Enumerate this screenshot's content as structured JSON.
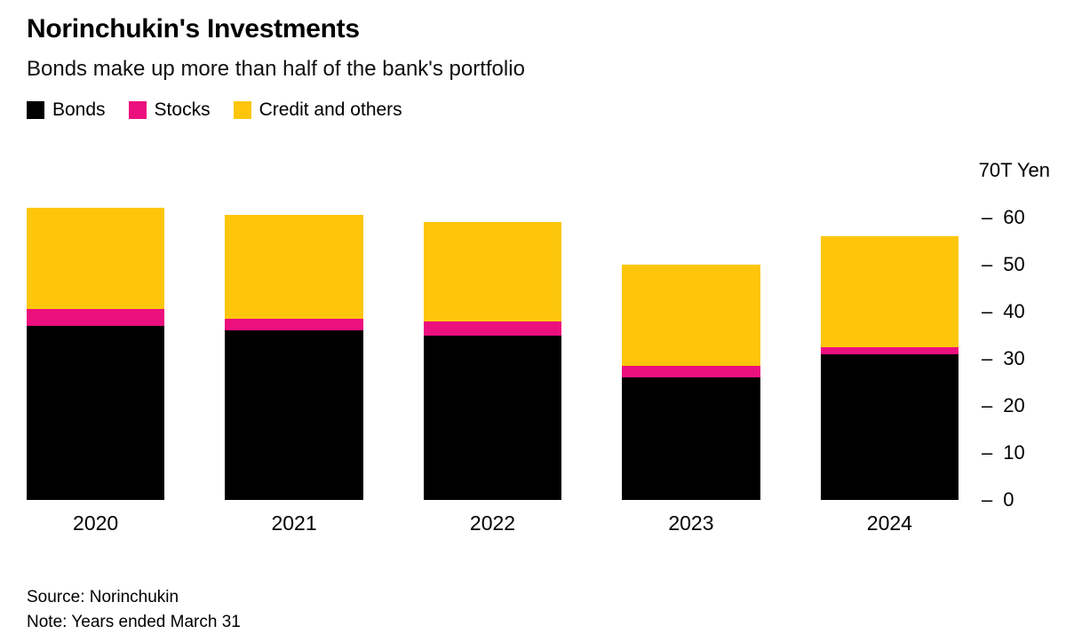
{
  "header": {
    "title": "Norinchukin's Investments",
    "subtitle": "Bonds make up more than half of the bank's portfolio"
  },
  "legend": [
    {
      "label": "Bonds",
      "color": "#000000"
    },
    {
      "label": "Stocks",
      "color": "#ec0f7e"
    },
    {
      "label": "Credit and others",
      "color": "#fdc60b"
    }
  ],
  "chart_data": {
    "type": "bar",
    "stacked": true,
    "title": "Norinchukin's Investments",
    "subtitle": "Bonds make up more than half of the bank's portfolio",
    "categories": [
      "2020",
      "2021",
      "2022",
      "2023",
      "2024"
    ],
    "series": [
      {
        "name": "Bonds",
        "color": "#000000",
        "values": [
          37,
          36,
          35,
          26,
          31
        ]
      },
      {
        "name": "Stocks",
        "color": "#ec0f7e",
        "values": [
          3.5,
          2.5,
          3,
          2.5,
          1.5
        ]
      },
      {
        "name": "Credit and others",
        "color": "#fdc60b",
        "values": [
          21.5,
          22,
          21,
          21.5,
          23.5
        ]
      }
    ],
    "totals": [
      62,
      60.5,
      59,
      50,
      56
    ],
    "unit_label": "70T Yen",
    "ylim": [
      0,
      70
    ],
    "yticks": [
      0,
      10,
      20,
      30,
      40,
      50,
      60
    ],
    "tick_dash": "–",
    "grid": false,
    "legend_position": "top-left",
    "axis_side": "right"
  },
  "footer": {
    "source": "Source: Norinchukin",
    "note": "Note: Years ended March 31"
  }
}
